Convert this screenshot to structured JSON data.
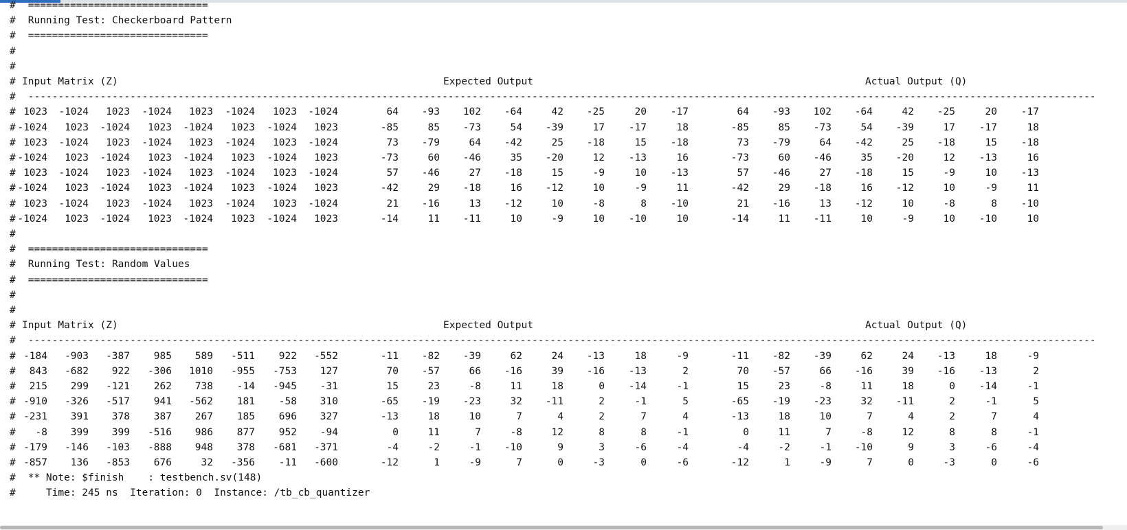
{
  "console": {
    "tests": [
      {
        "separator": "==============================",
        "title": "Running Test: Checkerboard Pattern",
        "headers": {
          "input": "Input Matrix (Z)",
          "expected": "Expected Output",
          "actual": "Actual Output (Q)"
        },
        "dashes": "------------------------------------------------------------------------------------------------------------------------------------------------------------------------------------------------------------",
        "rows": [
          {
            "input": [
              1023,
              -1024,
              1023,
              -1024,
              1023,
              -1024,
              1023,
              -1024
            ],
            "expected": [
              64,
              -93,
              102,
              -64,
              42,
              -25,
              20,
              -17
            ],
            "actual": [
              64,
              -93,
              102,
              -64,
              42,
              -25,
              20,
              -17
            ]
          },
          {
            "input": [
              -1024,
              1023,
              -1024,
              1023,
              -1024,
              1023,
              -1024,
              1023
            ],
            "expected": [
              -85,
              85,
              -73,
              54,
              -39,
              17,
              -17,
              18
            ],
            "actual": [
              -85,
              85,
              -73,
              54,
              -39,
              17,
              -17,
              18
            ]
          },
          {
            "input": [
              1023,
              -1024,
              1023,
              -1024,
              1023,
              -1024,
              1023,
              -1024
            ],
            "expected": [
              73,
              -79,
              64,
              -42,
              25,
              -18,
              15,
              -18
            ],
            "actual": [
              73,
              -79,
              64,
              -42,
              25,
              -18,
              15,
              -18
            ]
          },
          {
            "input": [
              -1024,
              1023,
              -1024,
              1023,
              -1024,
              1023,
              -1024,
              1023
            ],
            "expected": [
              -73,
              60,
              -46,
              35,
              -20,
              12,
              -13,
              16
            ],
            "actual": [
              -73,
              60,
              -46,
              35,
              -20,
              12,
              -13,
              16
            ]
          },
          {
            "input": [
              1023,
              -1024,
              1023,
              -1024,
              1023,
              -1024,
              1023,
              -1024
            ],
            "expected": [
              57,
              -46,
              27,
              -18,
              15,
              -9,
              10,
              -13
            ],
            "actual": [
              57,
              -46,
              27,
              -18,
              15,
              -9,
              10,
              -13
            ]
          },
          {
            "input": [
              -1024,
              1023,
              -1024,
              1023,
              -1024,
              1023,
              -1024,
              1023
            ],
            "expected": [
              -42,
              29,
              -18,
              16,
              -12,
              10,
              -9,
              11
            ],
            "actual": [
              -42,
              29,
              -18,
              16,
              -12,
              10,
              -9,
              11
            ]
          },
          {
            "input": [
              1023,
              -1024,
              1023,
              -1024,
              1023,
              -1024,
              1023,
              -1024
            ],
            "expected": [
              21,
              -16,
              13,
              -12,
              10,
              -8,
              8,
              -10
            ],
            "actual": [
              21,
              -16,
              13,
              -12,
              10,
              -8,
              8,
              -10
            ]
          },
          {
            "input": [
              -1024,
              1023,
              -1024,
              1023,
              -1024,
              1023,
              -1024,
              1023
            ],
            "expected": [
              -14,
              11,
              -11,
              10,
              -9,
              10,
              -10,
              10
            ],
            "actual": [
              -14,
              11,
              -11,
              10,
              -9,
              10,
              -10,
              10
            ]
          }
        ]
      },
      {
        "separator": "==============================",
        "title": "Running Test: Random Values",
        "headers": {
          "input": "Input Matrix (Z)",
          "expected": "Expected Output",
          "actual": "Actual Output (Q)"
        },
        "dashes": "------------------------------------------------------------------------------------------------------------------------------------------------------------------------------------------------------------",
        "rows": [
          {
            "input": [
              -184,
              -903,
              -387,
              985,
              589,
              -511,
              922,
              -552
            ],
            "expected": [
              -11,
              -82,
              -39,
              62,
              24,
              -13,
              18,
              -9
            ],
            "actual": [
              -11,
              -82,
              -39,
              62,
              24,
              -13,
              18,
              -9
            ]
          },
          {
            "input": [
              843,
              -682,
              922,
              -306,
              1010,
              -955,
              -753,
              127
            ],
            "expected": [
              70,
              -57,
              66,
              -16,
              39,
              -16,
              -13,
              2
            ],
            "actual": [
              70,
              -57,
              66,
              -16,
              39,
              -16,
              -13,
              2
            ]
          },
          {
            "input": [
              215,
              299,
              -121,
              262,
              738,
              -14,
              -945,
              -31
            ],
            "expected": [
              15,
              23,
              -8,
              11,
              18,
              0,
              -14,
              -1
            ],
            "actual": [
              15,
              23,
              -8,
              11,
              18,
              0,
              -14,
              -1
            ]
          },
          {
            "input": [
              -910,
              -326,
              -517,
              941,
              -562,
              181,
              -58,
              310
            ],
            "expected": [
              -65,
              -19,
              -23,
              32,
              -11,
              2,
              -1,
              5
            ],
            "actual": [
              -65,
              -19,
              -23,
              32,
              -11,
              2,
              -1,
              5
            ]
          },
          {
            "input": [
              -231,
              391,
              378,
              387,
              267,
              185,
              696,
              327
            ],
            "expected": [
              -13,
              18,
              10,
              7,
              4,
              2,
              7,
              4
            ],
            "actual": [
              -13,
              18,
              10,
              7,
              4,
              2,
              7,
              4
            ]
          },
          {
            "input": [
              -8,
              399,
              399,
              -516,
              986,
              877,
              952,
              -94
            ],
            "expected": [
              0,
              11,
              7,
              -8,
              12,
              8,
              8,
              -1
            ],
            "actual": [
              0,
              11,
              7,
              -8,
              12,
              8,
              8,
              -1
            ]
          },
          {
            "input": [
              -179,
              -146,
              -103,
              -888,
              948,
              378,
              -681,
              -371
            ],
            "expected": [
              -4,
              -2,
              -1,
              -10,
              9,
              3,
              -6,
              -4
            ],
            "actual": [
              -4,
              -2,
              -1,
              -10,
              9,
              3,
              -6,
              -4
            ]
          },
          {
            "input": [
              -857,
              136,
              -853,
              676,
              32,
              -356,
              -11,
              -600
            ],
            "expected": [
              -12,
              1,
              -9,
              7,
              0,
              -3,
              0,
              -6
            ],
            "actual": [
              -12,
              1,
              -9,
              7,
              0,
              -3,
              0,
              -6
            ]
          }
        ]
      }
    ],
    "note_line": "** Note: $finish    : testbench.sv(148)",
    "time_line": "   Time: 245 ns  Iteration: 0  Instance: /tb_cb_quantizer",
    "hash": "#"
  },
  "colors": {
    "text": "#111111",
    "background": "#ffffff",
    "scrollbar_thumb": "#b7b7b7",
    "top_accent": "#2f6fbf"
  }
}
